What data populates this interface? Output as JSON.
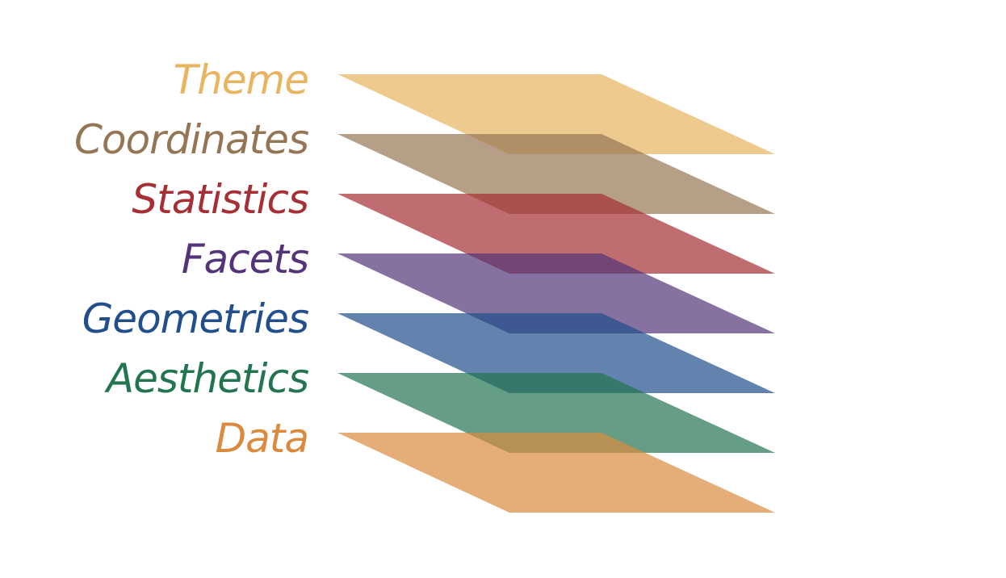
{
  "diagram": {
    "layers": [
      {
        "label": "Theme",
        "color": "#e8b460"
      },
      {
        "label": "Coordinates",
        "color": "#957654"
      },
      {
        "label": "Statistics",
        "color": "#a52f35"
      },
      {
        "label": "Facets",
        "color": "#533478"
      },
      {
        "label": "Geometries",
        "color": "#204f8c"
      },
      {
        "label": "Aesthetics",
        "color": "#237550"
      },
      {
        "label": "Data",
        "color": "#da8a3e"
      }
    ],
    "layer_opacity": 0.7
  }
}
